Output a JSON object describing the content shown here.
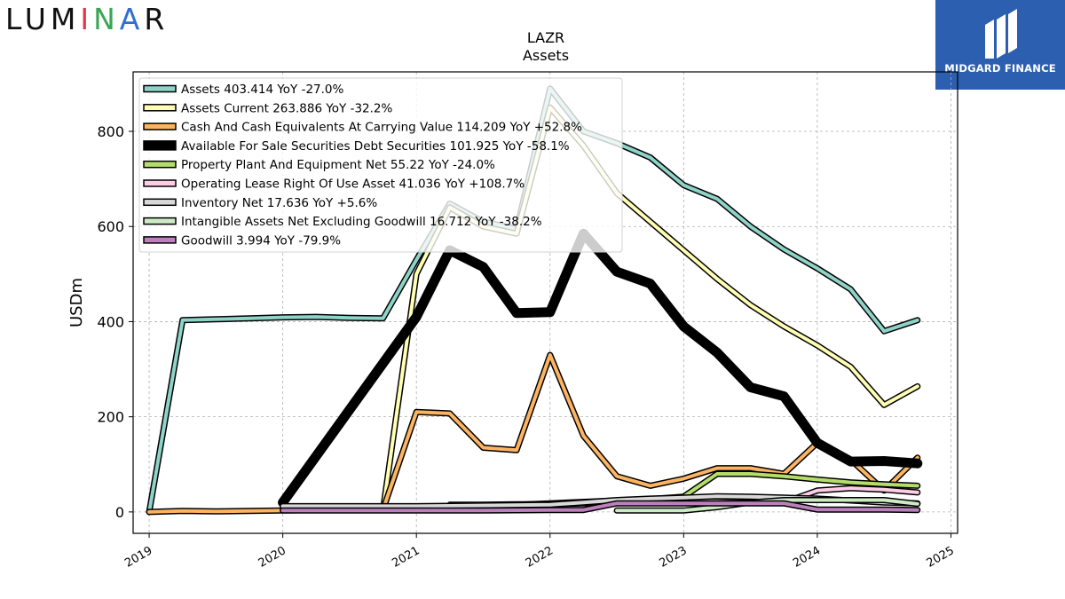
{
  "brand": {
    "logo_text": "LUMINAR",
    "badge_text": "MIDGARD FINANCE"
  },
  "chart_data": {
    "type": "line",
    "title": "LAZR",
    "subtitle": "Assets",
    "ylabel": "USDm",
    "xlabel": "",
    "xlim": [
      2018.88,
      2025.05
    ],
    "ylim": [
      -45,
      925
    ],
    "yticks": [
      0,
      200,
      400,
      600,
      800
    ],
    "xticks": [
      2019,
      2020,
      2021,
      2022,
      2023,
      2024,
      2025
    ],
    "xtick_labels": [
      "2019",
      "2020",
      "2021",
      "2022",
      "2023",
      "2024",
      "2025"
    ],
    "grid": true,
    "legend_position": "top-left",
    "series": [
      {
        "name": "Assets",
        "legend": "Assets  403.414 YoY -27.0%",
        "color": "#8dd3c7",
        "width": 4,
        "x": [
          2019.0,
          2019.25,
          2019.5,
          2019.75,
          2020.0,
          2020.25,
          2020.5,
          2020.75,
          2021.0,
          2021.25,
          2021.5,
          2021.75,
          2022.0,
          2022.25,
          2022.5,
          2022.75,
          2023.0,
          2023.25,
          2023.5,
          2023.75,
          2024.0,
          2024.25,
          2024.5,
          2024.75
        ],
        "y": [
          0,
          403,
          405,
          407,
          409,
          410,
          408,
          407,
          530,
          648,
          610,
          595,
          890,
          800,
          775,
          745,
          687,
          658,
          600,
          552,
          512,
          468,
          380,
          403
        ]
      },
      {
        "name": "Assets Current",
        "legend": "Assets Current  263.886 YoY -32.2%",
        "color": "#ffffb3",
        "width": 4,
        "x": [
          2020.75,
          2021.0,
          2021.25,
          2021.5,
          2021.75,
          2022.0,
          2022.25,
          2022.5,
          2022.75,
          2023.0,
          2023.25,
          2023.5,
          2023.75,
          2024.0,
          2024.25,
          2024.5,
          2024.75
        ],
        "y": [
          5,
          500,
          640,
          600,
          585,
          850,
          770,
          670,
          610,
          550,
          490,
          435,
          390,
          350,
          305,
          225,
          264
        ]
      },
      {
        "name": "Cash And Cash Equivalents At Carrying Value",
        "legend": "Cash And Cash Equivalents At Carrying Value  114.209 YoY +52.8%",
        "color": "#fdb462",
        "width": 4,
        "x": [
          2019.0,
          2019.25,
          2019.5,
          2019.75,
          2020.0,
          2020.25,
          2020.5,
          2020.75,
          2021.0,
          2021.25,
          2021.5,
          2021.75,
          2022.0,
          2022.25,
          2022.5,
          2022.75,
          2023.0,
          2023.25,
          2023.5,
          2023.75,
          2024.0,
          2024.25,
          2024.5,
          2024.75
        ],
        "y": [
          0,
          2,
          1,
          2,
          3,
          4,
          4,
          5,
          210,
          207,
          135,
          130,
          330,
          160,
          75,
          55,
          70,
          92,
          92,
          80,
          145,
          110,
          45,
          114
        ]
      },
      {
        "name": "Available For Sale Securities Debt Securities",
        "legend": "Available For Sale Securities Debt Securities  101.925 YoY -58.1%",
        "color": "#000000",
        "width": 8,
        "x": [
          2020.0,
          2021.0,
          2021.25,
          2021.5,
          2021.75,
          2022.0,
          2022.25,
          2022.5,
          2022.75,
          2023.0,
          2023.25,
          2023.5,
          2023.75,
          2024.0,
          2024.25,
          2024.5,
          2024.75
        ],
        "y": [
          20,
          410,
          550,
          515,
          418,
          420,
          585,
          505,
          480,
          390,
          335,
          262,
          243,
          145,
          106,
          107,
          102
        ]
      },
      {
        "name": "Property Plant And Equipment Net",
        "legend": "Property Plant And Equipment Net  55.22 YoY -24.0%",
        "color": "#b3de69",
        "width": 4,
        "x": [
          2020.0,
          2021.0,
          2021.5,
          2022.0,
          2022.5,
          2022.75,
          2023.0,
          2023.25,
          2023.5,
          2023.75,
          2024.0,
          2024.25,
          2024.5,
          2024.75
        ],
        "y": [
          8,
          10,
          12,
          18,
          24,
          27,
          32,
          80,
          80,
          75,
          68,
          62,
          58,
          55
        ]
      },
      {
        "name": "Operating Lease Right Of Use Asset",
        "legend": "Operating Lease Right Of Use Asset  41.036 YoY +108.7%",
        "color": "#fccde5",
        "width": 4,
        "x": [
          2021.25,
          2021.5,
          2021.75,
          2022.0,
          2022.25,
          2022.5,
          2022.75,
          2023.0,
          2023.25,
          2023.5,
          2023.75,
          2024.0,
          2024.25,
          2024.5,
          2024.75
        ],
        "y": [
          15,
          15,
          16,
          16,
          18,
          20,
          22,
          22,
          22,
          20,
          20,
          45,
          50,
          47,
          41
        ]
      },
      {
        "name": "Inventory Net",
        "legend": "Inventory Net  17.636 YoY +5.6%",
        "color": "#d9d9d9",
        "width": 4,
        "x": [
          2020.0,
          2021.0,
          2022.0,
          2022.25,
          2022.5,
          2022.75,
          2023.0,
          2023.25,
          2023.5,
          2023.75,
          2024.0,
          2024.25,
          2024.5,
          2024.75
        ],
        "y": [
          12,
          12,
          15,
          20,
          25,
          28,
          30,
          33,
          32,
          30,
          28,
          24,
          20,
          18
        ]
      },
      {
        "name": "Intangible Assets Net Excluding Goodwill",
        "legend": "Intangible Assets Net Excluding Goodwill  16.712 YoY -38.2%",
        "color": "#ccebc5",
        "width": 4,
        "x": [
          2022.5,
          2022.75,
          2023.0,
          2023.25,
          2023.5,
          2023.75,
          2024.0,
          2024.25,
          2024.5,
          2024.75
        ],
        "y": [
          3,
          3,
          3,
          10,
          20,
          25,
          25,
          25,
          25,
          17
        ]
      },
      {
        "name": "Goodwill",
        "legend": "Goodwill  3.994 YoY -79.9%",
        "color": "#bc80bd",
        "width": 4,
        "x": [
          2020.0,
          2021.0,
          2021.5,
          2022.0,
          2022.25,
          2022.5,
          2022.75,
          2023.0,
          2023.25,
          2023.5,
          2023.75,
          2024.0,
          2024.25,
          2024.5,
          2024.75
        ],
        "y": [
          3,
          3,
          3,
          4,
          4,
          18,
          18,
          18,
          18,
          18,
          18,
          5,
          5,
          5,
          4
        ]
      }
    ]
  }
}
